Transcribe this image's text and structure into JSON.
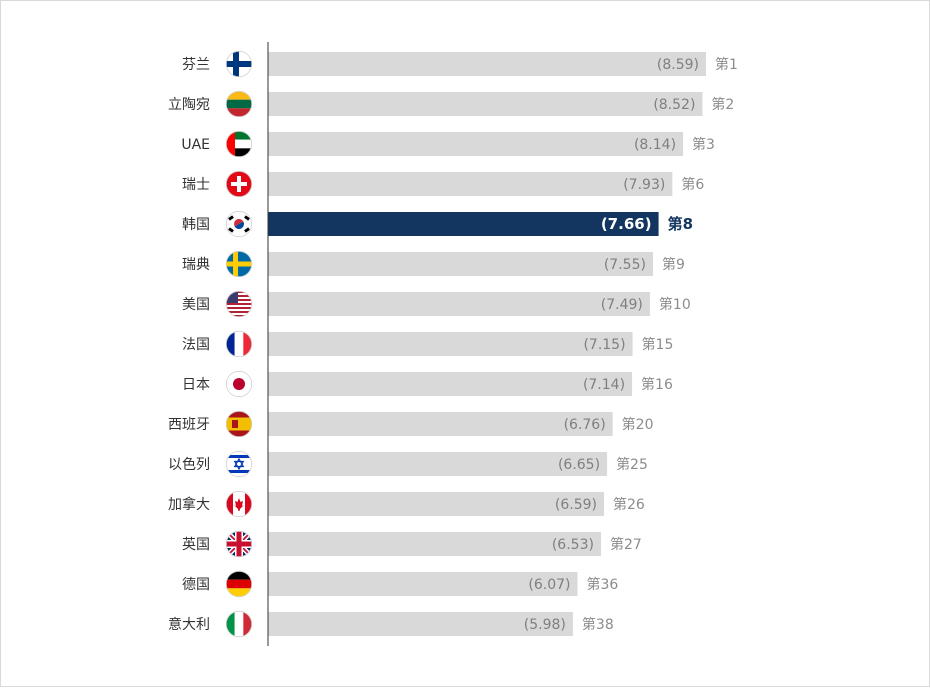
{
  "chart_data": {
    "type": "bar",
    "orientation": "horizontal",
    "xlim": [
      0,
      9.1
    ],
    "grid": false,
    "highlight_color": "#12365f",
    "bar_color": "#d9d9d9",
    "rows": [
      {
        "country": "芬兰",
        "value": 8.59,
        "value_label": "(8.59)",
        "rank": "第1",
        "flag": "finland-flag-icon"
      },
      {
        "country": "立陶宛",
        "value": 8.52,
        "value_label": "(8.52)",
        "rank": "第2",
        "flag": "lithuania-flag-icon"
      },
      {
        "country": "UAE",
        "value": 8.14,
        "value_label": "(8.14)",
        "rank": "第3",
        "flag": "uae-flag-icon"
      },
      {
        "country": "瑞士",
        "value": 7.93,
        "value_label": "(7.93)",
        "rank": "第6",
        "flag": "switzerland-flag-icon"
      },
      {
        "country": "韩国",
        "value": 7.66,
        "value_label": "(7.66)",
        "rank": "第8",
        "flag": "korea-flag-icon",
        "highlight": true
      },
      {
        "country": "瑞典",
        "value": 7.55,
        "value_label": "(7.55)",
        "rank": "第9",
        "flag": "sweden-flag-icon"
      },
      {
        "country": "美国",
        "value": 7.49,
        "value_label": "(7.49)",
        "rank": "第10",
        "flag": "usa-flag-icon"
      },
      {
        "country": "法国",
        "value": 7.15,
        "value_label": "(7.15)",
        "rank": "第15",
        "flag": "france-flag-icon"
      },
      {
        "country": "日本",
        "value": 7.14,
        "value_label": "(7.14)",
        "rank": "第16",
        "flag": "japan-flag-icon"
      },
      {
        "country": "西班牙",
        "value": 6.76,
        "value_label": "(6.76)",
        "rank": "第20",
        "flag": "spain-flag-icon"
      },
      {
        "country": "以色列",
        "value": 6.65,
        "value_label": "(6.65)",
        "rank": "第25",
        "flag": "israel-flag-icon"
      },
      {
        "country": "加拿大",
        "value": 6.59,
        "value_label": "(6.59)",
        "rank": "第26",
        "flag": "canada-flag-icon"
      },
      {
        "country": "英国",
        "value": 6.53,
        "value_label": "(6.53)",
        "rank": "第27",
        "flag": "uk-flag-icon"
      },
      {
        "country": "德国",
        "value": 6.07,
        "value_label": "(6.07)",
        "rank": "第36",
        "flag": "germany-flag-icon"
      },
      {
        "country": "意大利",
        "value": 5.98,
        "value_label": "(5.98)",
        "rank": "第38",
        "flag": "italy-flag-icon"
      }
    ]
  }
}
